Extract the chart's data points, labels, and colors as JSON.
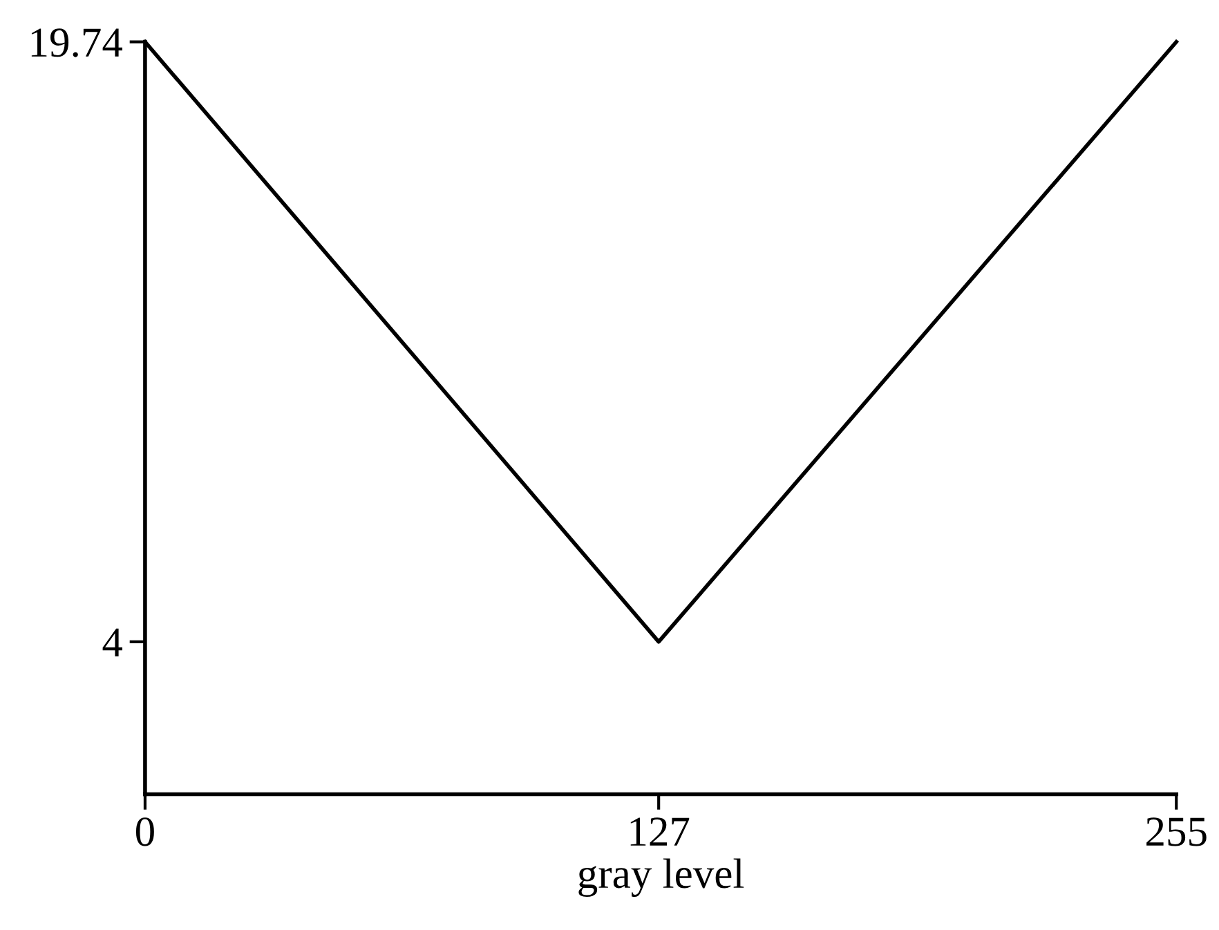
{
  "chart_data": {
    "type": "line",
    "xlabel": "gray level",
    "x": [
      0,
      127,
      255
    ],
    "values": [
      19.74,
      4,
      19.74
    ],
    "color": "#000000",
    "xlim": [
      0,
      255
    ],
    "xticks": [
      0,
      127,
      255
    ],
    "ylim": [
      0,
      19.74
    ],
    "yticks": [
      4,
      19.74
    ],
    "grid": false,
    "marker": "none",
    "line_style": "solid"
  }
}
